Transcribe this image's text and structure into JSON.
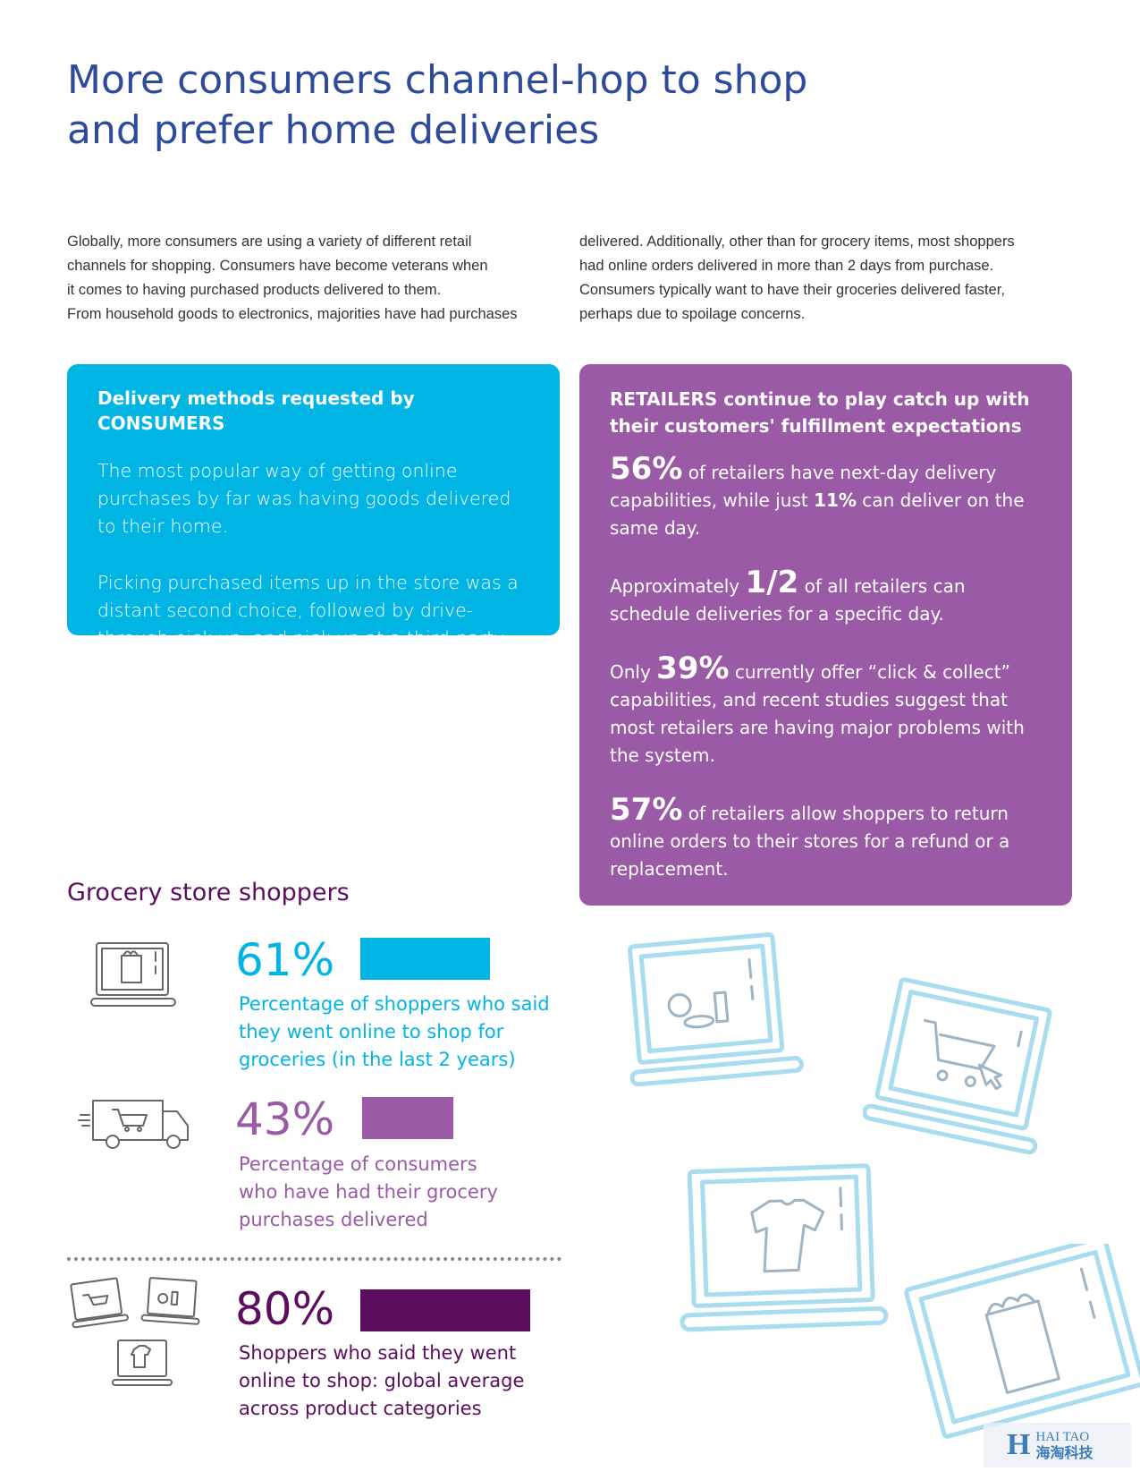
{
  "header": {
    "title_line1": "More consumers channel-hop to shop",
    "title_line2": "and prefer home deliveries"
  },
  "intro": {
    "col1_lines": [
      "Globally, more consumers are using a variety of different retail",
      "channels for shopping. Consumers have become veterans when",
      "it comes to having purchased products delivered to them.",
      "From household goods to electronics, majorities have had purchases"
    ],
    "col2_lines": [
      "delivered. Additionally, other than for grocery items, most shoppers",
      "had online orders delivered in more than 2 days from purchase.",
      "Consumers typically want to have their groceries delivered faster,",
      "perhaps due to spoilage concerns."
    ]
  },
  "consumers_box": {
    "heading": "Delivery methods requested by CONSUMERS",
    "para1": "The most popular way of getting online purchases by far was having goods delivered to their home.",
    "para2": "Picking purchased items up in the store was a distant second choice, followed by drive-through pick up, and pick up at a third-party location.",
    "color": "#00b5e4"
  },
  "retailers_box": {
    "heading": "RETAILERS continue to play catch up with their customers' fulfillment expectations",
    "color": "#9a5aa5",
    "p1": {
      "big": "56%",
      "text_a": " of retailers have next-day delivery capabilities, while just ",
      "bold": "11%",
      "text_b": " can deliver on the same day."
    },
    "p2": {
      "pre": "Approximately ",
      "big": "1/2",
      "post": " of all retailers can schedule deliveries for a specific day."
    },
    "p3": {
      "pre": "Only ",
      "big": "39%",
      "post": " currently offer “click & collect” capabilities, and recent studies suggest that most retailers are having major problems with the system."
    },
    "p4": {
      "big": "57%",
      "post": " of retailers allow shoppers to return online orders to their stores for a refund or a replacement."
    }
  },
  "grocery": {
    "section_title": "Grocery store shoppers",
    "stats": [
      {
        "value": "61%",
        "percent": 61,
        "color": "#00b5e4",
        "desc_lines": [
          "Percentage of shoppers who said",
          "they went online to shop for",
          "groceries (in the last 2 years)"
        ],
        "icon": "laptop-grocery-icon"
      },
      {
        "value": "43%",
        "percent": 43,
        "color": "#9a5aa5",
        "desc_lines": [
          "Percentage of consumers",
          "who have had their grocery",
          "purchases delivered"
        ],
        "icon": "delivery-truck-icon"
      },
      {
        "value": "80%",
        "percent": 80,
        "color": "#5b0d5e",
        "desc_lines": [
          "Shoppers who said they went",
          "online to shop: global average",
          "across product categories"
        ],
        "icon": "laptops-group-icon"
      }
    ]
  },
  "watermark": {
    "latin": "HAI TAO",
    "chinese": "海淘科技",
    "letter": "H"
  }
}
